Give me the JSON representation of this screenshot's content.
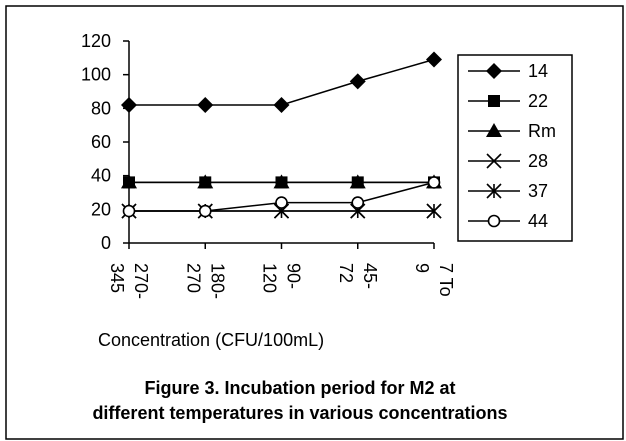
{
  "chart_data": {
    "type": "line",
    "title": "",
    "xlabel": "Concentration (CFU/100mL)",
    "ylabel": "",
    "categories": [
      "270-345",
      "180-270",
      "90-120",
      "45-72",
      "7 To 9"
    ],
    "category_lines": [
      [
        "270-",
        "345"
      ],
      [
        "180-",
        "270"
      ],
      [
        "90-",
        "120"
      ],
      [
        "45-",
        "72"
      ],
      [
        "7 To",
        "9"
      ]
    ],
    "ylim": [
      0,
      120
    ],
    "yticks": [
      "0",
      "20",
      "40",
      "60",
      "80",
      "100",
      "120"
    ],
    "grid": false,
    "legend_position": "right",
    "series": [
      {
        "name": "14",
        "marker": "diamond",
        "values": [
          82,
          82,
          82,
          96,
          109
        ]
      },
      {
        "name": "22",
        "marker": "square",
        "values": [
          36,
          36,
          36,
          36,
          36
        ]
      },
      {
        "name": "Rm",
        "marker": "triangle",
        "values": [
          36,
          36,
          36,
          36,
          36
        ]
      },
      {
        "name": "28",
        "marker": "x",
        "values": [
          19,
          19,
          19,
          19,
          19
        ]
      },
      {
        "name": "37",
        "marker": "asterisk",
        "values": [
          19,
          19,
          19,
          19,
          19
        ]
      },
      {
        "name": "44",
        "marker": "circle",
        "values": [
          19,
          19,
          24,
          24,
          36
        ]
      }
    ]
  },
  "caption": {
    "line1": "Figure 3. Incubation period for M2 at",
    "line2": "different temperatures in various concentrations"
  },
  "colors": {
    "line": "#000000",
    "background": "#ffffff",
    "frame": "#000000"
  }
}
